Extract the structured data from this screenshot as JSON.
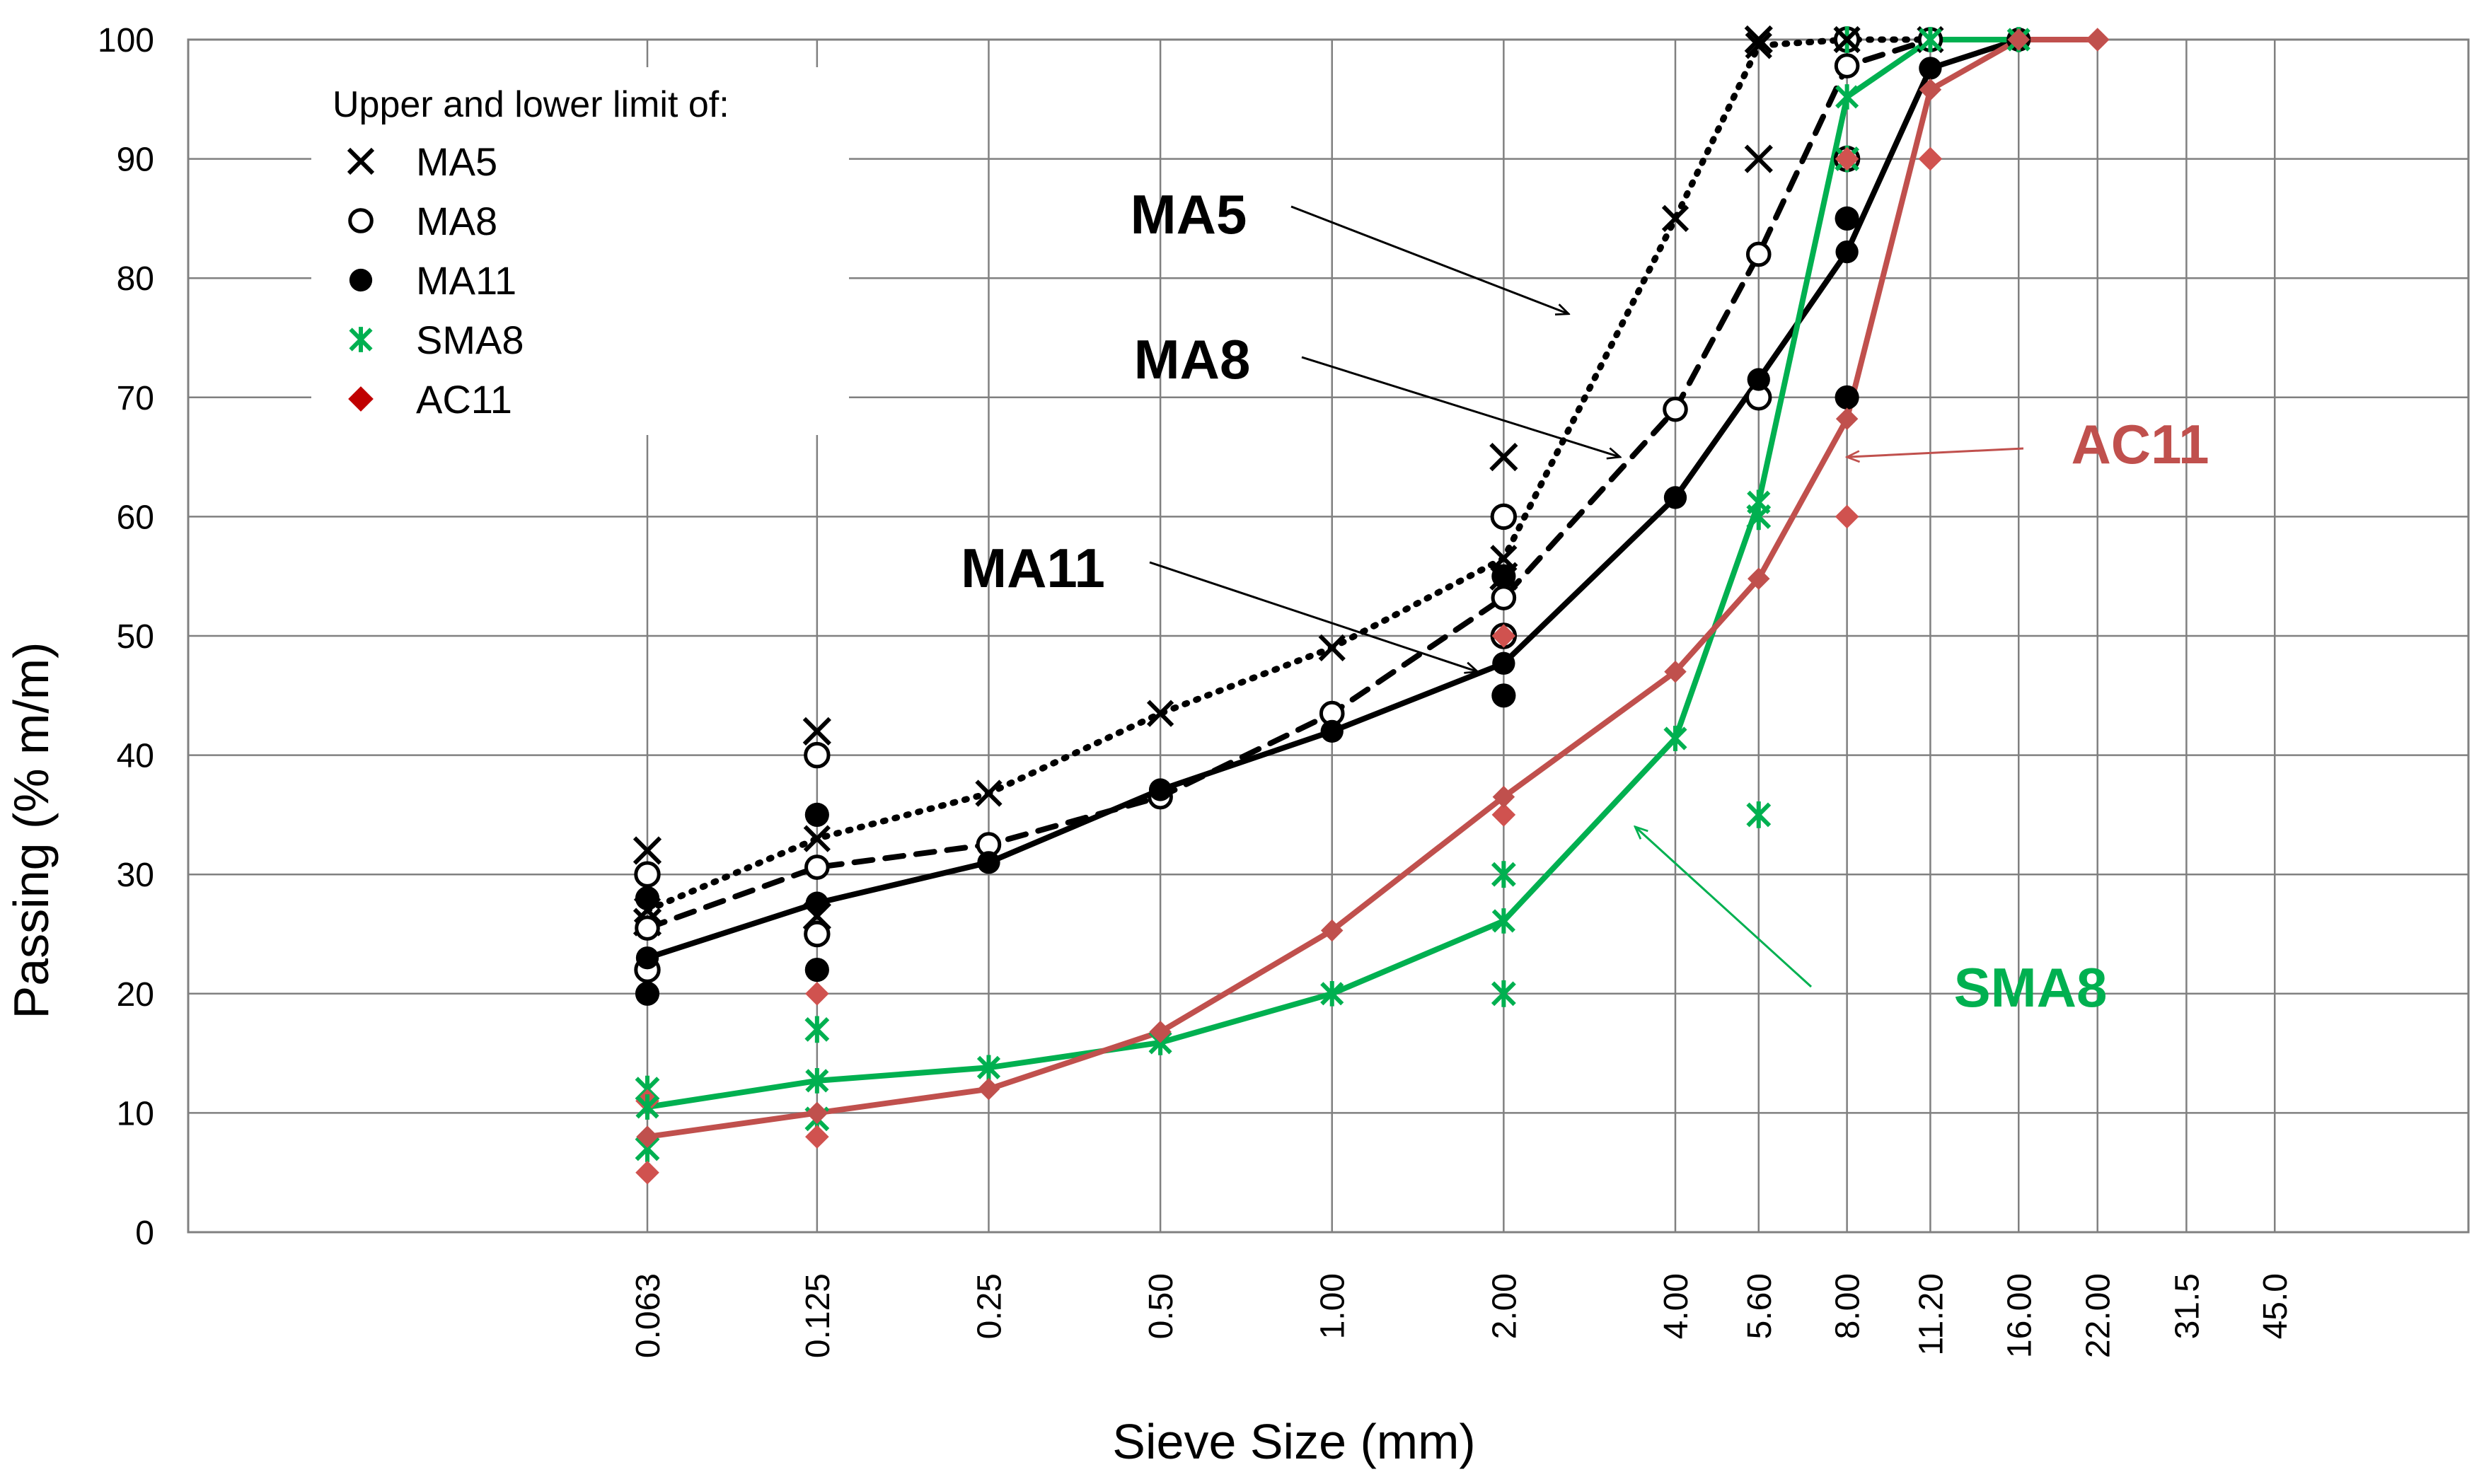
{
  "chart_data": {
    "type": "line",
    "title": "",
    "xlabel": "Sieve Size (mm)",
    "ylabel": "Passing (% m/m)",
    "ylim": [
      0,
      100
    ],
    "y_ticks": [
      "0",
      "10",
      "20",
      "30",
      "40",
      "50",
      "60",
      "70",
      "80",
      "90",
      "100"
    ],
    "x_scale": "log",
    "categories": [
      "0.063",
      "0.125",
      "0.25",
      "0.50",
      "1.00",
      "2.00",
      "4.00",
      "5.60",
      "8.00",
      "11.20",
      "16.00",
      "22.00",
      "31.5",
      "45.0"
    ],
    "x_values": [
      0.063,
      0.125,
      0.25,
      0.5,
      1.0,
      2.0,
      4.0,
      5.6,
      8.0,
      11.2,
      16.0,
      22.0,
      31.5,
      45.0
    ],
    "grid": true,
    "legend": {
      "title": "Upper and lower limit of:",
      "position": "top-left",
      "entries": [
        {
          "label": "MA5",
          "marker": "cross",
          "color": "#000000"
        },
        {
          "label": "MA8",
          "marker": "open-circle",
          "color": "#000000"
        },
        {
          "label": "MA11",
          "marker": "filled-circle",
          "color": "#000000"
        },
        {
          "label": "SMA8",
          "marker": "asterisk",
          "color": "#00B050"
        },
        {
          "label": "AC11",
          "marker": "diamond",
          "color": "#C00000"
        }
      ]
    },
    "series": [
      {
        "name": "MA5",
        "style": "dotted",
        "color": "#000000",
        "marker": "cross",
        "x": [
          0.063,
          0.125,
          0.25,
          0.5,
          1.0,
          2.0,
          4.0,
          5.6,
          8.0,
          11.2
        ],
        "values": [
          27,
          33,
          36.8,
          43.5,
          49,
          56.5,
          85,
          99.5,
          100,
          100
        ],
        "limits": {
          "x": [
            0.063,
            0.063,
            0.125,
            0.125,
            2.0,
            2.0,
            5.6,
            5.6
          ],
          "values": [
            32,
            26,
            42,
            26.5,
            65,
            55,
            100,
            90
          ]
        }
      },
      {
        "name": "MA8",
        "style": "dashed",
        "color": "#000000",
        "marker": "open-circle",
        "x": [
          0.063,
          0.125,
          0.25,
          0.5,
          1.0,
          2.0,
          4.0,
          5.6,
          8.0,
          11.2
        ],
        "values": [
          25.5,
          30.6,
          32.5,
          36.5,
          43.5,
          53.2,
          69,
          82,
          97.8,
          100
        ],
        "limits": {
          "x": [
            0.063,
            0.063,
            0.125,
            0.125,
            2.0,
            2.0,
            5.6,
            8.0,
            8.0
          ],
          "values": [
            30,
            22,
            40,
            25,
            60,
            50,
            70,
            100,
            90
          ]
        }
      },
      {
        "name": "MA11",
        "style": "solid",
        "color": "#000000",
        "marker": "filled-circle",
        "x": [
          0.063,
          0.125,
          0.25,
          0.5,
          1.0,
          2.0,
          4.0,
          5.6,
          8.0,
          11.2,
          16.0
        ],
        "values": [
          23,
          27.6,
          31,
          37.1,
          42,
          47.7,
          61.6,
          71.5,
          82.2,
          97.6,
          100
        ],
        "limits": {
          "x": [
            0.063,
            0.063,
            0.125,
            0.125,
            2.0,
            2.0,
            8.0,
            8.0,
            11.2,
            16.0
          ],
          "values": [
            28,
            20,
            35,
            22,
            55,
            45,
            85,
            70,
            100,
            100
          ]
        }
      },
      {
        "name": "SMA8",
        "style": "solid",
        "color": "#00B050",
        "marker": "asterisk",
        "x": [
          0.063,
          0.125,
          0.25,
          0.5,
          1.0,
          2.0,
          4.0,
          5.6,
          8.0,
          11.2,
          16.0
        ],
        "values": [
          10.5,
          12.7,
          13.8,
          15.9,
          20,
          26.1,
          41.4,
          61.2,
          95.2,
          100,
          100
        ],
        "limits": {
          "x": [
            0.063,
            0.063,
            0.125,
            0.125,
            2.0,
            2.0,
            5.6,
            5.6,
            8.0,
            8.0
          ],
          "values": [
            12,
            7,
            17,
            9.5,
            30,
            20,
            60,
            35,
            100,
            90
          ]
        }
      },
      {
        "name": "AC11",
        "style": "solid",
        "color": "#C0504D",
        "marker": "diamond",
        "x": [
          0.063,
          0.125,
          0.25,
          0.5,
          1.0,
          2.0,
          4.0,
          5.6,
          8.0,
          11.2,
          16.0,
          22.0
        ],
        "values": [
          8,
          10,
          12,
          16.8,
          25.3,
          36.5,
          47,
          54.8,
          68.2,
          95.8,
          100,
          100
        ],
        "limits": {
          "x": [
            0.063,
            0.063,
            0.125,
            0.125,
            2.0,
            2.0,
            8.0,
            8.0,
            11.2,
            11.2,
            16.0,
            22.0
          ],
          "values": [
            11,
            5,
            20,
            8,
            50,
            35,
            90,
            60,
            100,
            90,
            100,
            100
          ]
        }
      }
    ],
    "annotations": [
      {
        "text": "MA5",
        "color": "#000000",
        "target_x": 2.6,
        "target_y": 77
      },
      {
        "text": "MA8",
        "color": "#000000",
        "target_x": 3.2,
        "target_y": 65
      },
      {
        "text": "MA11",
        "color": "#000000",
        "target_x": 1.8,
        "target_y": 47
      },
      {
        "text": "AC11",
        "color": "#C0504D",
        "target_x": 8.0,
        "target_y": 65
      },
      {
        "text": "SMA8",
        "color": "#00B050",
        "target_x": 3.4,
        "target_y": 34
      }
    ]
  }
}
